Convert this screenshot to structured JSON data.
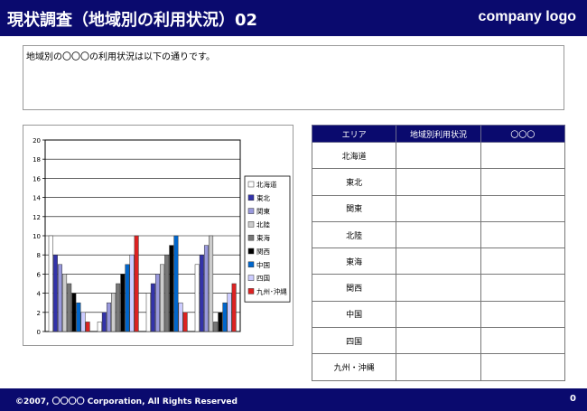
{
  "header": {
    "title": "現状調査（地域別の利用状況）02",
    "logo": "company logo"
  },
  "description": "地域別の〇〇〇の利用状況は以下の通りです。",
  "chart_data": {
    "type": "bar",
    "categories": [
      "",
      "",
      "",
      ""
    ],
    "yticks": [
      "0",
      "2",
      "4",
      "6",
      "8",
      "10",
      "12",
      "14",
      "16",
      "18",
      "20"
    ],
    "ylim": [
      0,
      20
    ],
    "grid": true,
    "legend": "right",
    "series": [
      {
        "name": "北海道",
        "color": "#ffffff",
        "values": [
          10,
          1,
          4,
          7
        ]
      },
      {
        "name": "東北",
        "color": "#3333aa",
        "values": [
          8,
          2,
          5,
          8
        ]
      },
      {
        "name": "関東",
        "color": "#9999dd",
        "values": [
          7,
          3,
          6,
          9
        ]
      },
      {
        "name": "北陸",
        "color": "#cccccc",
        "values": [
          6,
          4,
          7,
          10
        ]
      },
      {
        "name": "東海",
        "color": "#777777",
        "values": [
          5,
          5,
          8,
          1
        ]
      },
      {
        "name": "関西",
        "color": "#000000",
        "values": [
          4,
          6,
          9,
          2
        ]
      },
      {
        "name": "中国",
        "color": "#0066cc",
        "values": [
          3,
          7,
          10,
          3
        ]
      },
      {
        "name": "四国",
        "color": "#ccccff",
        "values": [
          2,
          8,
          3,
          4
        ]
      },
      {
        "name": "九州･沖縄",
        "color": "#dd2222",
        "values": [
          1,
          10,
          2,
          5
        ]
      }
    ]
  },
  "table": {
    "headers": [
      "エリア",
      "地域別利用状況",
      "〇〇〇"
    ],
    "rows": [
      [
        "北海道",
        "",
        ""
      ],
      [
        "東北",
        "",
        ""
      ],
      [
        "関東",
        "",
        ""
      ],
      [
        "北陸",
        "",
        ""
      ],
      [
        "東海",
        "",
        ""
      ],
      [
        "関西",
        "",
        ""
      ],
      [
        "中国",
        "",
        ""
      ],
      [
        "四国",
        "",
        ""
      ],
      [
        "九州・沖縄",
        "",
        ""
      ]
    ]
  },
  "footer": {
    "copyright": "©2007, 〇〇〇〇 Corporation, All Rights Reserved",
    "page": "0"
  }
}
